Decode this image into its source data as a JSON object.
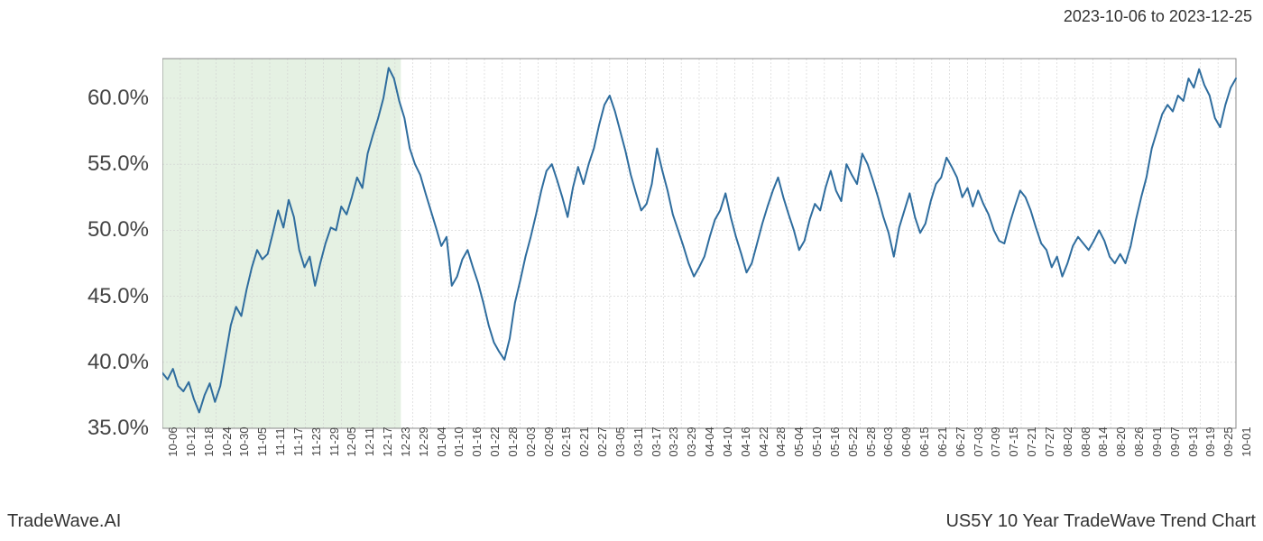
{
  "date_range": "2023-10-06 to 2023-12-25",
  "footer_left": "TradeWave.AI",
  "footer_right": "US5Y 10 Year TradeWave Trend Chart",
  "chart": {
    "type": "line",
    "line_color": "#2f6d9e",
    "line_width": 2,
    "background_color": "#ffffff",
    "grid_color": "#d0d0d0",
    "shaded_region": {
      "color": "#d4e8d0",
      "opacity": 0.6,
      "x_start_label": "10-06",
      "x_end_label": "12-25"
    },
    "ylim": [
      35,
      63
    ],
    "y_ticks": [
      35,
      40,
      45,
      50,
      55,
      60
    ],
    "y_tick_labels": [
      "35.0%",
      "40.0%",
      "45.0%",
      "50.0%",
      "55.0%",
      "60.0%"
    ],
    "y_label_fontsize": 24,
    "x_tick_labels": [
      "10-06",
      "10-12",
      "10-18",
      "10-24",
      "10-30",
      "11-05",
      "11-11",
      "11-17",
      "11-23",
      "11-29",
      "12-05",
      "12-11",
      "12-17",
      "12-23",
      "12-29",
      "01-04",
      "01-10",
      "01-16",
      "01-22",
      "01-28",
      "02-03",
      "02-09",
      "02-15",
      "02-21",
      "02-27",
      "03-05",
      "03-11",
      "03-17",
      "03-23",
      "03-29",
      "04-04",
      "04-10",
      "04-16",
      "04-22",
      "04-28",
      "05-04",
      "05-10",
      "05-16",
      "05-22",
      "05-28",
      "06-03",
      "06-09",
      "06-15",
      "06-21",
      "06-27",
      "07-03",
      "07-09",
      "07-15",
      "07-21",
      "07-27",
      "08-02",
      "08-08",
      "08-14",
      "08-20",
      "08-26",
      "09-01",
      "09-07",
      "09-13",
      "09-19",
      "09-25",
      "10-01"
    ],
    "x_label_fontsize": 13,
    "x_label_rotation": -90,
    "values": [
      39.2,
      38.7,
      39.5,
      38.2,
      37.8,
      38.5,
      37.2,
      36.2,
      37.5,
      38.4,
      37.0,
      38.2,
      40.5,
      42.8,
      44.2,
      43.5,
      45.5,
      47.2,
      48.5,
      47.8,
      48.2,
      49.8,
      51.5,
      50.2,
      52.3,
      51.0,
      48.5,
      47.2,
      48.0,
      45.8,
      47.5,
      49.0,
      50.2,
      50.0,
      51.8,
      51.2,
      52.5,
      54.0,
      53.2,
      55.8,
      57.2,
      58.5,
      60.0,
      62.3,
      61.5,
      59.8,
      58.5,
      56.2,
      55.0,
      54.2,
      52.8,
      51.5,
      50.2,
      48.8,
      49.5,
      45.8,
      46.5,
      47.8,
      48.5,
      47.2,
      46.0,
      44.5,
      42.8,
      41.5,
      40.8,
      40.2,
      41.8,
      44.5,
      46.2,
      48.0,
      49.5,
      51.2,
      53.0,
      54.5,
      55.0,
      53.8,
      52.5,
      51.0,
      53.2,
      54.8,
      53.5,
      55.0,
      56.2,
      58.0,
      59.5,
      60.2,
      59.0,
      57.5,
      56.0,
      54.2,
      52.8,
      51.5,
      52.0,
      53.5,
      56.2,
      54.5,
      53.0,
      51.2,
      50.0,
      48.8,
      47.5,
      46.5,
      47.2,
      48.0,
      49.5,
      50.8,
      51.5,
      52.8,
      51.0,
      49.5,
      48.2,
      46.8,
      47.5,
      49.0,
      50.5,
      51.8,
      53.0,
      54.0,
      52.5,
      51.2,
      50.0,
      48.5,
      49.2,
      50.8,
      52.0,
      51.5,
      53.2,
      54.5,
      53.0,
      52.2,
      55.0,
      54.2,
      53.5,
      55.8,
      55.0,
      53.8,
      52.5,
      51.0,
      49.8,
      48.0,
      50.2,
      51.5,
      52.8,
      51.0,
      49.8,
      50.5,
      52.2,
      53.5,
      54.0,
      55.5,
      54.8,
      54.0,
      52.5,
      53.2,
      51.8,
      53.0,
      52.0,
      51.2,
      50.0,
      49.2,
      49.0,
      50.5,
      51.8,
      53.0,
      52.5,
      51.5,
      50.2,
      49.0,
      48.5,
      47.2,
      48.0,
      46.5,
      47.5,
      48.8,
      49.5,
      49.0,
      48.5,
      49.2,
      50.0,
      49.2,
      48.0,
      47.5,
      48.2,
      47.5,
      48.8,
      50.8,
      52.5,
      54.0,
      56.2,
      57.5,
      58.8,
      59.5,
      59.0,
      60.2,
      59.8,
      61.5,
      60.8,
      62.2,
      61.0,
      60.2,
      58.5,
      57.8,
      59.5,
      60.8,
      61.5
    ]
  }
}
